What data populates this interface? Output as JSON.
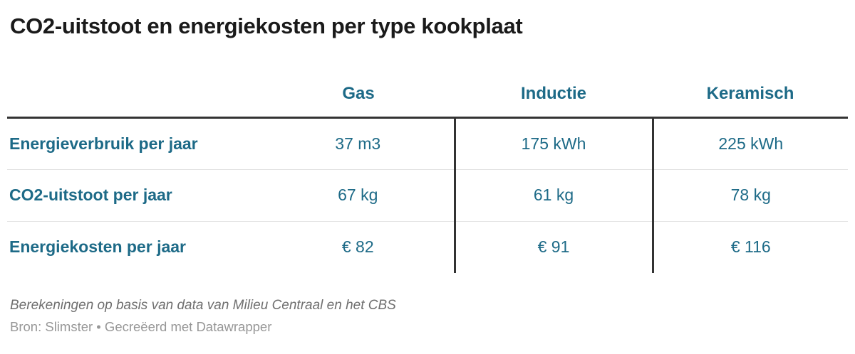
{
  "title": "CO2-uitstoot en energiekosten per type kookplaat",
  "colors": {
    "accent": "#1d6a87",
    "title": "#1a1a1a",
    "heavy_rule": "#333333",
    "row_rule": "#e3e3e3",
    "notes": "#6e6e6e",
    "source": "#979797"
  },
  "chart_data": {
    "type": "table",
    "title": "CO2-uitstoot en energiekosten per type kookplaat",
    "columns": [
      "",
      "Gas",
      "Inductie",
      "Keramisch"
    ],
    "rows": [
      {
        "label": "Energieverbruik per jaar",
        "values": [
          "37 m3",
          "175 kWh",
          "225 kWh"
        ]
      },
      {
        "label": "CO2-uitstoot per jaar",
        "values": [
          "67 kg",
          "61 kg",
          "78 kg"
        ]
      },
      {
        "label": "Energiekosten per jaar",
        "values": [
          "€ 82",
          "€ 91",
          "€ 116"
        ]
      }
    ],
    "layout_hints": {
      "heavy_rule_below_header": true,
      "vertical_rules_between_value_columns": true,
      "light_rules_between_rows": true
    }
  },
  "footer": {
    "notes": "Berekeningen op basis van data van Milieu Centraal en het CBS",
    "source": "Bron: Slimster • Gecreëerd met Datawrapper"
  }
}
